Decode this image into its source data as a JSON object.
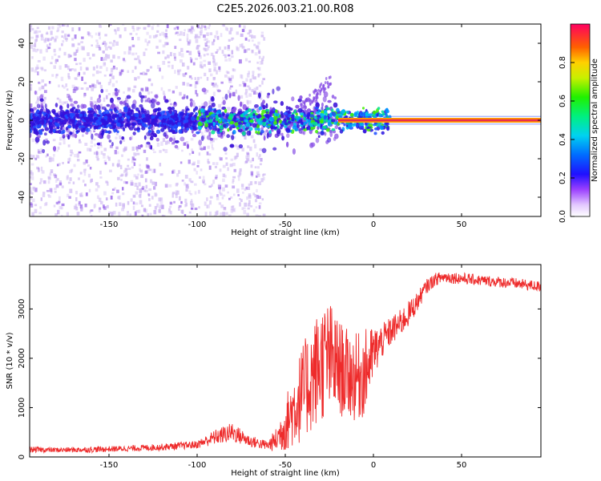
{
  "title": "C2E5.2026.003.21.00.R08",
  "colors": {
    "snr_line": "#ee2b2b",
    "carrier_line": "#e8294f",
    "scatter_light": "#cdb7f2",
    "scatter_mid": "#8a52e6",
    "scatter_dark": "#3a10d8"
  },
  "chart_data": [
    {
      "type": "heatmap",
      "name": "spectrogram",
      "xlabel": "Height of straight line (km)",
      "ylabel": "Frequency (Hz)",
      "xlim": [
        -195,
        95
      ],
      "ylim": [
        -50,
        50
      ],
      "xticks": [
        -150,
        -100,
        -50,
        0,
        50
      ],
      "yticks": [
        -40,
        -20,
        0,
        20,
        40
      ],
      "grid": false,
      "carrier_frequency_hz": 0,
      "carrier_x_range": [
        -20,
        95
      ],
      "noise_band_hz": 5,
      "colorbar": {
        "label": "Normalized spectral amplitude",
        "range": [
          0,
          1
        ],
        "ticks": [
          0.0,
          0.2,
          0.4,
          0.6,
          0.8
        ]
      }
    },
    {
      "type": "line",
      "name": "snr",
      "xlabel": "Height of straight line (km)",
      "ylabel": "SNR (10 * v/v)",
      "xlim": [
        -195,
        95
      ],
      "ylim": [
        0,
        3900
      ],
      "xticks": [
        -150,
        -100,
        -50,
        0,
        50
      ],
      "yticks": [
        0,
        1000,
        2000,
        3000
      ],
      "grid": false,
      "series": [
        {
          "name": "SNR",
          "x": [
            -195,
            -180,
            -160,
            -140,
            -120,
            -100,
            -90,
            -80,
            -70,
            -60,
            -55,
            -50,
            -45,
            -40,
            -35,
            -30,
            -25,
            -20,
            -15,
            -10,
            -5,
            0,
            5,
            10,
            15,
            20,
            25,
            30,
            35,
            40,
            50,
            60,
            70,
            80,
            95
          ],
          "y": [
            150,
            140,
            150,
            170,
            200,
            250,
            400,
            500,
            320,
            230,
            350,
            650,
            1000,
            1300,
            1600,
            1900,
            2000,
            1800,
            1700,
            1600,
            1700,
            2100,
            2350,
            2550,
            2700,
            2900,
            3150,
            3450,
            3600,
            3650,
            3620,
            3580,
            3550,
            3520,
            3450
          ],
          "y_noise_amplitude": [
            60,
            50,
            60,
            60,
            70,
            80,
            150,
            200,
            120,
            100,
            250,
            550,
            800,
            1000,
            1100,
            1200,
            1200,
            1000,
            900,
            900,
            900,
            550,
            350,
            300,
            280,
            260,
            200,
            150,
            130,
            120,
            120,
            110,
            110,
            110,
            110
          ]
        }
      ]
    }
  ]
}
